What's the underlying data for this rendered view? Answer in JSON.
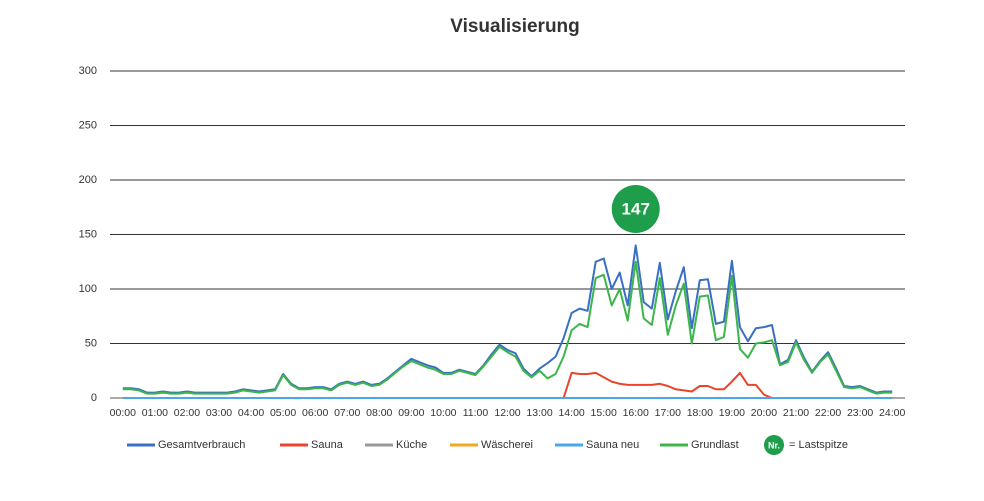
{
  "chart_data": {
    "type": "line",
    "title": "Visualisierung",
    "x": [
      0,
      0.25,
      0.5,
      0.75,
      1,
      1.25,
      1.5,
      1.75,
      2,
      2.25,
      2.5,
      2.75,
      3,
      3.25,
      3.5,
      3.75,
      4,
      4.25,
      4.5,
      4.75,
      5,
      5.25,
      5.5,
      5.75,
      6,
      6.25,
      6.5,
      6.75,
      7,
      7.25,
      7.5,
      7.75,
      8,
      8.25,
      8.5,
      8.75,
      9,
      9.25,
      9.5,
      9.75,
      10,
      10.25,
      10.5,
      10.75,
      11,
      11.25,
      11.5,
      11.75,
      12,
      12.25,
      12.5,
      12.75,
      13,
      13.25,
      13.5,
      13.75,
      14,
      14.25,
      14.5,
      14.75,
      15,
      15.25,
      15.5,
      15.75,
      16,
      16.25,
      16.5,
      16.75,
      17,
      17.25,
      17.5,
      17.75,
      18,
      18.25,
      18.5,
      18.75,
      19,
      19.25,
      19.5,
      19.75,
      20,
      20.25,
      20.5,
      20.75,
      21,
      21.25,
      21.5,
      21.75,
      22,
      22.25,
      22.5,
      22.75,
      23,
      23.25,
      23.5,
      23.75,
      24
    ],
    "series": [
      {
        "name": "Gesamtverbrauch",
        "color": "#3a6fc4",
        "values": [
          9,
          9,
          8,
          5,
          5,
          6,
          5,
          5,
          6,
          5,
          5,
          5,
          5,
          5,
          6,
          8,
          7,
          6,
          7,
          8,
          22,
          13,
          9,
          9,
          10,
          10,
          8,
          13,
          15,
          13,
          15,
          12,
          13,
          18,
          24,
          30,
          36,
          33,
          30,
          28,
          23,
          23,
          26,
          24,
          22,
          30,
          40,
          49,
          44,
          41,
          27,
          20,
          27,
          32,
          38,
          55,
          78,
          82,
          80,
          125,
          128,
          100,
          115,
          85,
          140,
          88,
          82,
          124,
          72,
          98,
          120,
          64,
          108,
          109,
          68,
          70,
          126,
          65,
          52,
          64,
          65,
          67,
          31,
          35,
          53,
          37,
          24,
          34,
          42,
          27,
          11,
          10,
          11,
          8,
          5,
          6,
          6
        ]
      },
      {
        "name": "Sauna",
        "color": "#e8452c",
        "values": [
          0,
          0,
          0,
          0,
          0,
          0,
          0,
          0,
          0,
          0,
          0,
          0,
          0,
          0,
          0,
          0,
          0,
          0,
          0,
          0,
          0,
          0,
          0,
          0,
          0,
          0,
          0,
          0,
          0,
          0,
          0,
          0,
          0,
          0,
          0,
          0,
          0,
          0,
          0,
          0,
          0,
          0,
          0,
          0,
          0,
          0,
          0,
          0,
          0,
          0,
          0,
          0,
          0,
          0,
          0,
          0,
          23,
          22,
          22,
          23,
          19,
          15,
          13,
          12,
          12,
          12,
          12,
          13,
          11,
          8,
          7,
          6,
          11,
          11,
          8,
          8,
          15,
          23,
          12,
          12,
          3,
          0,
          0,
          0,
          0,
          0,
          0,
          0,
          0,
          0,
          0,
          0,
          0,
          0,
          0,
          0,
          0
        ]
      },
      {
        "name": "Küche",
        "color": "#999999",
        "values": [
          0,
          0,
          0,
          0,
          0,
          0,
          0,
          0,
          0,
          0,
          0,
          0,
          0,
          0,
          0,
          0,
          0,
          0,
          0,
          0,
          0,
          0,
          0,
          0,
          0,
          0,
          0,
          0,
          0,
          0,
          0,
          0,
          0,
          0,
          0,
          0,
          0,
          0,
          0,
          0,
          0,
          0,
          0,
          0,
          0,
          0,
          0,
          0,
          0,
          0,
          0,
          0,
          0,
          0,
          0,
          0,
          0,
          0,
          0,
          0,
          0,
          0,
          0,
          0,
          0,
          0,
          0,
          0,
          0,
          0,
          0,
          0,
          0,
          0,
          0,
          0,
          0,
          0,
          0,
          0,
          0,
          0,
          0,
          0,
          0,
          0,
          0,
          0,
          0,
          0,
          0,
          0,
          0,
          0,
          0,
          0,
          0
        ]
      },
      {
        "name": "Wäscherei",
        "color": "#f5a623",
        "values": [
          0,
          0,
          0,
          0,
          0,
          0,
          0,
          0,
          0,
          0,
          0,
          0,
          0,
          0,
          0,
          0,
          0,
          0,
          0,
          0,
          0,
          0,
          0,
          0,
          0,
          0,
          0,
          0,
          0,
          0,
          0,
          0,
          0,
          0,
          0,
          0,
          0,
          0,
          0,
          0,
          0,
          0,
          0,
          0,
          0,
          0,
          0,
          0,
          0,
          0,
          0,
          0,
          0,
          0,
          0,
          0,
          0,
          0,
          0,
          0,
          0,
          0,
          0,
          0,
          0,
          0,
          0,
          0,
          0,
          0,
          0,
          0,
          0,
          0,
          0,
          0,
          0,
          0,
          0,
          0,
          0,
          0,
          0,
          0,
          0,
          0,
          0,
          0,
          0,
          0,
          0,
          0,
          0,
          0,
          0,
          0,
          0
        ]
      },
      {
        "name": "Sauna neu",
        "color": "#4aa8e8",
        "values": [
          0,
          0,
          0,
          0,
          0,
          0,
          0,
          0,
          0,
          0,
          0,
          0,
          0,
          0,
          0,
          0,
          0,
          0,
          0,
          0,
          0,
          0,
          0,
          0,
          0,
          0,
          0,
          0,
          0,
          0,
          0,
          0,
          0,
          0,
          0,
          0,
          0,
          0,
          0,
          0,
          0,
          0,
          0,
          0,
          0,
          0,
          0,
          0,
          0,
          0,
          0,
          0,
          0,
          0,
          0,
          0,
          0,
          0,
          0,
          0,
          0,
          0,
          0,
          0,
          0,
          0,
          0,
          0,
          0,
          0,
          0,
          0,
          0,
          0,
          0,
          0,
          0,
          0,
          0,
          0,
          0,
          0,
          0,
          0,
          0,
          0,
          0,
          0,
          0,
          0,
          0,
          0,
          0,
          0,
          0,
          0,
          0
        ]
      },
      {
        "name": "Grundlast",
        "color": "#3cb54a",
        "values": [
          8,
          8,
          7,
          4,
          4,
          5,
          4,
          4,
          5,
          4,
          4,
          4,
          4,
          4,
          5,
          7,
          6,
          5,
          6,
          7,
          21,
          12,
          8,
          8,
          9,
          9,
          7,
          12,
          14,
          12,
          14,
          11,
          12,
          17,
          23,
          29,
          34,
          31,
          28,
          26,
          22,
          22,
          25,
          23,
          21,
          29,
          38,
          47,
          42,
          38,
          25,
          19,
          25,
          18,
          22,
          38,
          62,
          68,
          65,
          110,
          113,
          85,
          100,
          71,
          125,
          73,
          67,
          110,
          58,
          85,
          105,
          50,
          93,
          94,
          53,
          56,
          112,
          45,
          37,
          50,
          51,
          53,
          30,
          33,
          51,
          35,
          23,
          33,
          40,
          25,
          10,
          9,
          10,
          7,
          4,
          5,
          5
        ]
      }
    ],
    "xlim": [
      -0.4,
      24.4
    ],
    "xticks": [
      {
        "value": 0,
        "label": "00:00"
      },
      {
        "value": 1,
        "label": "01:00"
      },
      {
        "value": 2,
        "label": "02:00"
      },
      {
        "value": 3,
        "label": "03:00"
      },
      {
        "value": 4,
        "label": "04:00"
      },
      {
        "value": 5,
        "label": "05:00"
      },
      {
        "value": 6,
        "label": "06:00"
      },
      {
        "value": 7,
        "label": "07:00"
      },
      {
        "value": 8,
        "label": "08:00"
      },
      {
        "value": 9,
        "label": "09:00"
      },
      {
        "value": 10,
        "label": "10:00"
      },
      {
        "value": 11,
        "label": "11:00"
      },
      {
        "value": 12,
        "label": "12:00"
      },
      {
        "value": 13,
        "label": "13:00"
      },
      {
        "value": 14,
        "label": "14:00"
      },
      {
        "value": 15,
        "label": "15:00"
      },
      {
        "value": 16,
        "label": "16:00"
      },
      {
        "value": 17,
        "label": "17:00"
      },
      {
        "value": 18,
        "label": "18:00"
      },
      {
        "value": 19,
        "label": "19:00"
      },
      {
        "value": 20,
        "label": "20:00"
      },
      {
        "value": 21,
        "label": "21:00"
      },
      {
        "value": 22,
        "label": "22:00"
      },
      {
        "value": 23,
        "label": "23:00"
      },
      {
        "value": 24,
        "label": "24:00"
      }
    ],
    "ylim": [
      0,
      300
    ],
    "yticks": [
      0,
      50,
      100,
      150,
      200,
      250,
      300
    ],
    "grid": true,
    "annotation": {
      "text": "147",
      "x": 16,
      "color": "#1e9e4a"
    },
    "legend_marker": {
      "text": "Nr.",
      "label": "= Lastspitze",
      "color": "#1e9e4a"
    }
  }
}
